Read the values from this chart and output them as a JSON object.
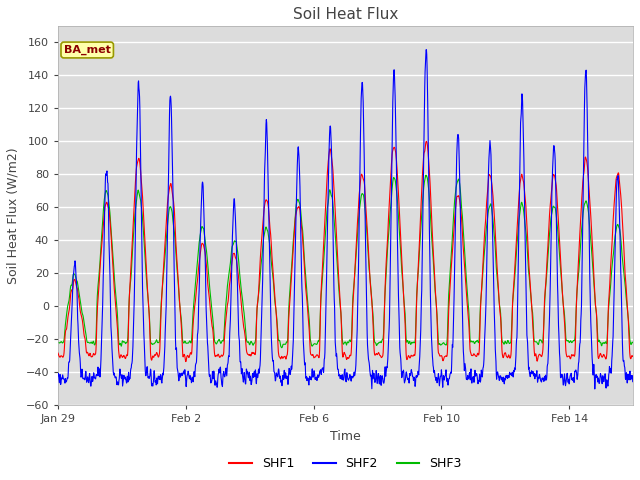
{
  "title": "Soil Heat Flux",
  "xlabel": "Time",
  "ylabel": "Soil Heat Flux (W/m2)",
  "ylim": [
    -60,
    170
  ],
  "yticks": [
    -60,
    -40,
    -20,
    0,
    20,
    40,
    60,
    80,
    100,
    120,
    140,
    160
  ],
  "fig_bg_color": "#ffffff",
  "plot_bg_color": "#dcdcdc",
  "grid_color": "#ffffff",
  "shf1_color": "#ff0000",
  "shf2_color": "#0000ff",
  "shf3_color": "#00bb00",
  "legend_label1": "SHF1",
  "legend_label2": "SHF2",
  "legend_label3": "SHF3",
  "station_label": "BA_met",
  "dt_hours": 0.25
}
